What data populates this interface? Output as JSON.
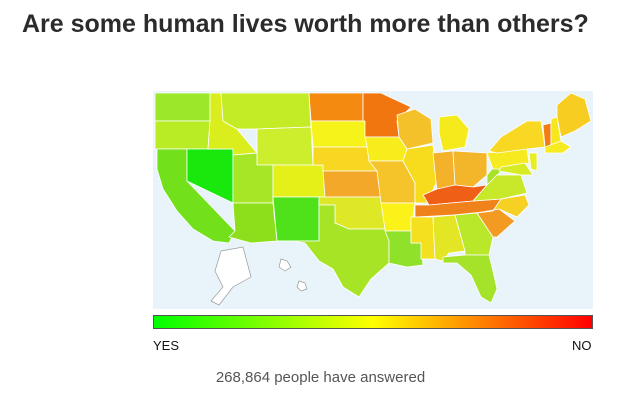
{
  "header": {
    "question": "Are some human lives worth more than others?"
  },
  "legend": {
    "min_label": "YES",
    "max_label": "NO",
    "gradient_colors": [
      "#00ff00",
      "#ffff00",
      "#ff0000"
    ]
  },
  "map": {
    "background_color": "#e8f4fa",
    "regions": [
      {
        "id": "WA",
        "color": "#9be82a"
      },
      {
        "id": "OR",
        "color": "#b9ec24"
      },
      {
        "id": "CA",
        "color": "#72e01a"
      },
      {
        "id": "NV",
        "color": "#19e80c"
      },
      {
        "id": "ID",
        "color": "#d9ee1c"
      },
      {
        "id": "MT",
        "color": "#c4ec26"
      },
      {
        "id": "WY",
        "color": "#cdee2c"
      },
      {
        "id": "UT",
        "color": "#a7e626"
      },
      {
        "id": "AZ",
        "color": "#8ddf1b"
      },
      {
        "id": "CO",
        "color": "#e4f018"
      },
      {
        "id": "NM",
        "color": "#4fe21a"
      },
      {
        "id": "ND",
        "color": "#f48a10"
      },
      {
        "id": "SD",
        "color": "#f6f31a"
      },
      {
        "id": "NE",
        "color": "#f8d722"
      },
      {
        "id": "KS",
        "color": "#f3a82a"
      },
      {
        "id": "OK",
        "color": "#dfe826"
      },
      {
        "id": "TX",
        "color": "#a7e425"
      },
      {
        "id": "MN",
        "color": "#f27610"
      },
      {
        "id": "IA",
        "color": "#f7ec1c"
      },
      {
        "id": "MO",
        "color": "#f4c42a"
      },
      {
        "id": "AR",
        "color": "#fbf21a"
      },
      {
        "id": "LA",
        "color": "#8fe12a"
      },
      {
        "id": "WI",
        "color": "#f5c12a"
      },
      {
        "id": "IL",
        "color": "#f7dc1e"
      },
      {
        "id": "MI",
        "color": "#f5eb1c"
      },
      {
        "id": "IN",
        "color": "#f3b22a"
      },
      {
        "id": "OH",
        "color": "#f3b62a"
      },
      {
        "id": "KY",
        "color": "#ef5f16"
      },
      {
        "id": "TN",
        "color": "#f0821c"
      },
      {
        "id": "MS",
        "color": "#f4e01e"
      },
      {
        "id": "AL",
        "color": "#e2e624"
      },
      {
        "id": "GA",
        "color": "#b9e82a"
      },
      {
        "id": "FL",
        "color": "#a4e329"
      },
      {
        "id": "SC",
        "color": "#f29a22"
      },
      {
        "id": "NC",
        "color": "#f6d022"
      },
      {
        "id": "VA",
        "color": "#c8e82a"
      },
      {
        "id": "WV",
        "color": "#a7e229"
      },
      {
        "id": "PA",
        "color": "#f6ea20"
      },
      {
        "id": "NY",
        "color": "#f8d822"
      },
      {
        "id": "VT",
        "color": "#f07e10"
      },
      {
        "id": "NH",
        "color": "#f4e71e"
      },
      {
        "id": "ME",
        "color": "#f7cd22"
      },
      {
        "id": "MA",
        "color": "#f6ea20"
      },
      {
        "id": "MD",
        "color": "#d8ec26"
      },
      {
        "id": "NJ",
        "color": "#e6ee22"
      }
    ]
  },
  "footer": {
    "count_text": "268,864 people have answered"
  }
}
